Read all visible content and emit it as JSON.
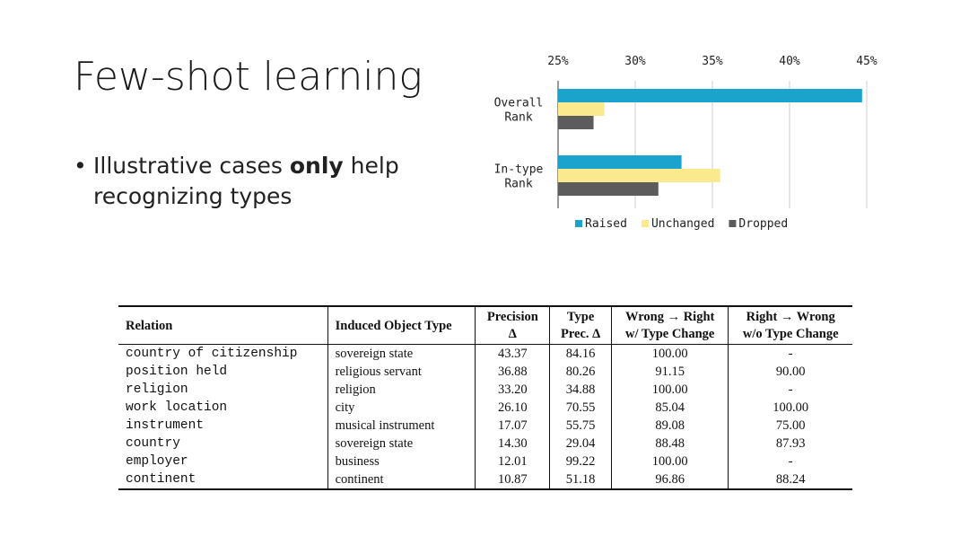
{
  "slide": {
    "title": "Few-shot learning",
    "bullet_prefix": "Illustrative cases ",
    "bullet_bold": "only",
    "bullet_suffix": " help recognizing types"
  },
  "chart_data": {
    "type": "bar",
    "orientation": "horizontal",
    "categories": [
      "Overall Rank",
      "In-type Rank"
    ],
    "series": [
      {
        "name": "Raised",
        "values": [
          44.7,
          33.0
        ],
        "color": "#1aa3cc"
      },
      {
        "name": "Unchanged",
        "values": [
          28.0,
          35.5
        ],
        "color": "#fbe98e"
      },
      {
        "name": "Dropped",
        "values": [
          27.3,
          31.5
        ],
        "color": "#5c5c5c"
      }
    ],
    "ticks": [
      "25%",
      "30%",
      "35%",
      "40%",
      "45%"
    ],
    "xlim": [
      25,
      45
    ],
    "grid": true,
    "legend_position": "bottom"
  },
  "table": {
    "headers": [
      {
        "line1": "Relation",
        "line2": ""
      },
      {
        "line1": "Induced Object Type",
        "line2": ""
      },
      {
        "line1": "Precision",
        "line2": "Δ"
      },
      {
        "line1": "Type",
        "line2": "Prec. Δ"
      },
      {
        "line1": "Wrong → Right",
        "line2": "w/ Type Change"
      },
      {
        "line1": "Right → Wrong",
        "line2": "w/o Type Change"
      }
    ],
    "rows": [
      [
        "country of citizenship",
        "sovereign state",
        "43.37",
        "84.16",
        "100.00",
        "-"
      ],
      [
        "position held",
        "religious servant",
        "36.88",
        "80.26",
        "91.15",
        "90.00"
      ],
      [
        "religion",
        "religion",
        "33.20",
        "34.88",
        "100.00",
        "-"
      ],
      [
        "work location",
        "city",
        "26.10",
        "70.55",
        "85.04",
        "100.00"
      ],
      [
        "instrument",
        "musical instrument",
        "17.07",
        "55.75",
        "89.08",
        "75.00"
      ],
      [
        "country",
        "sovereign state",
        "14.30",
        "29.04",
        "88.48",
        "87.93"
      ],
      [
        "employer",
        "business",
        "12.01",
        "99.22",
        "100.00",
        "-"
      ],
      [
        "continent",
        "continent",
        "10.87",
        "51.18",
        "96.86",
        "88.24"
      ]
    ]
  }
}
